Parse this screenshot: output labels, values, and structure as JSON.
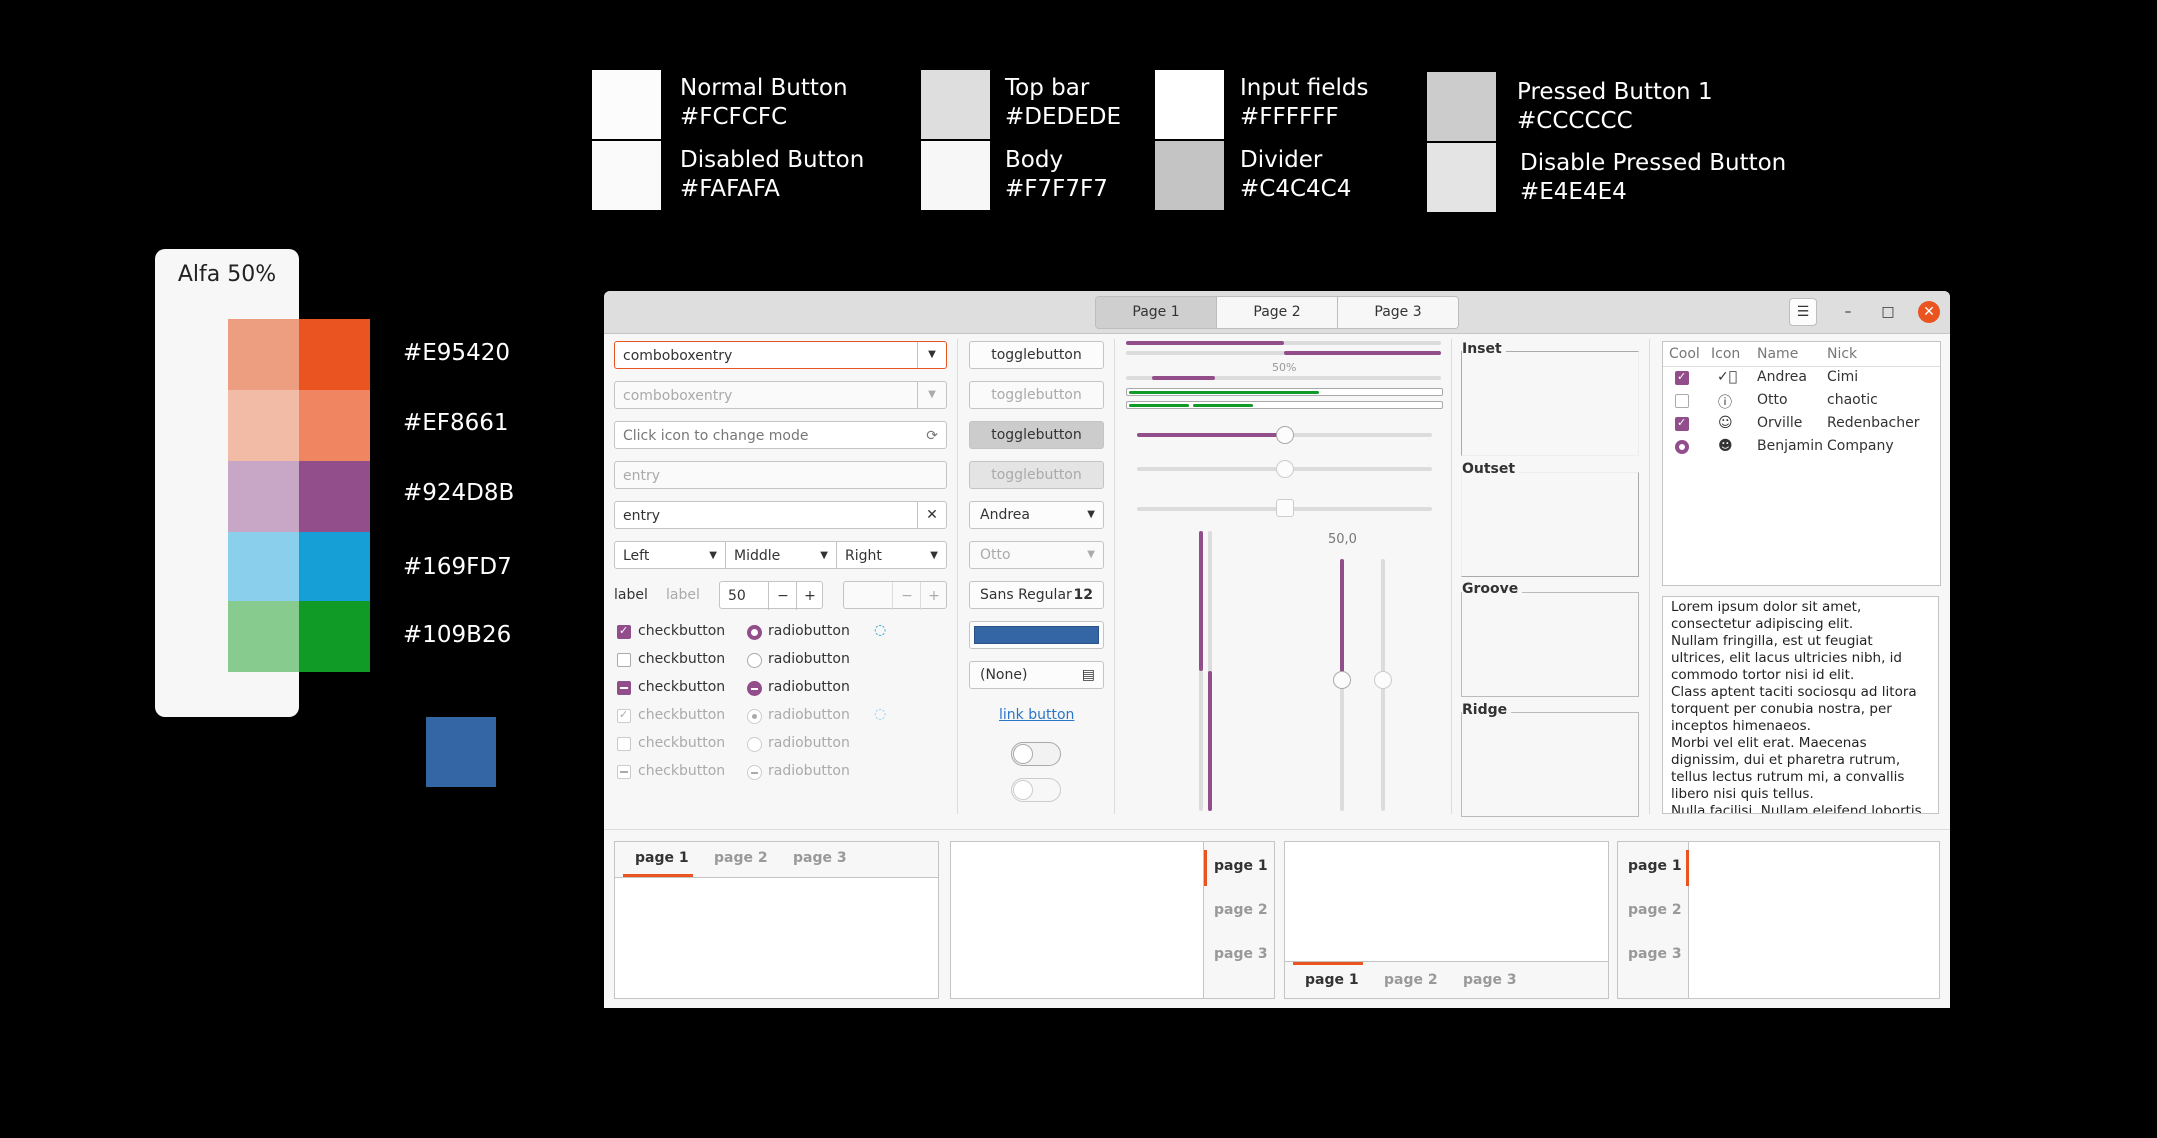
{
  "swatches": [
    {
      "name": "Normal Button",
      "hex": "#FCFCFC"
    },
    {
      "name": "Disabled Button",
      "hex": "#FAFAFA"
    },
    {
      "name": "Top bar",
      "hex": "#DEDEDE"
    },
    {
      "name": "Body",
      "hex": "#F7F7F7"
    },
    {
      "name": "Input fields",
      "hex": "#FFFFFF"
    },
    {
      "name": "Divider",
      "hex": "#C4C4C4"
    },
    {
      "name": "Pressed Button 1",
      "hex": "#CCCCCC"
    },
    {
      "name": "Disable Pressed Button",
      "hex": "#E4E4E4"
    }
  ],
  "palette": {
    "title": "Alfa 50%",
    "colors": [
      {
        "hex": "#E95420",
        "light": "#EE9E80"
      },
      {
        "hex": "#EF8661",
        "light": "#F2BBA6"
      },
      {
        "hex": "#924D8B",
        "light": "#C8A6C5"
      },
      {
        "hex": "#169FD7",
        "light": "#8ACFEB"
      },
      {
        "hex": "#109B26",
        "light": "#87CC8E"
      }
    ],
    "selected_color": "#3465A4"
  },
  "window": {
    "tabs": [
      "Page 1",
      "Page 2",
      "Page 3"
    ],
    "menu_icon": "hamburger-icon",
    "col1": {
      "combo1": "comboboxentry",
      "combo2": "comboboxentry",
      "mode_entry": "Click icon to change mode",
      "entry_placeholder": "entry",
      "entry_value": "entry",
      "align_left": "Left",
      "align_middle": "Middle",
      "align_right": "Right",
      "label1": "label",
      "label2": "label",
      "spin_value": "50",
      "check": "checkbutton",
      "radio": "radiobutton"
    },
    "col2": {
      "toggle": "togglebutton",
      "combo_andrea": "Andrea",
      "combo_otto": "Otto",
      "font_name": "Sans Regular",
      "font_size": "12",
      "file_none": "(None)",
      "link": "link button"
    },
    "col3": {
      "progress_label": "50%",
      "scale_value": "50,0"
    },
    "frames": [
      "Inset",
      "Outset",
      "Groove",
      "Ridge"
    ],
    "tree": {
      "headers": [
        "Cool",
        "Icon",
        "Name",
        "Nick"
      ],
      "rows": [
        {
          "name": "Andrea",
          "nick": "Cimi",
          "icon": "check-circle-icon"
        },
        {
          "name": "Otto",
          "nick": "chaotic",
          "icon": "exclamation-circle-icon"
        },
        {
          "name": "Orville",
          "nick": "Redenbacher",
          "icon": "face-icon"
        },
        {
          "name": "Benjamin",
          "nick": "Company",
          "icon": "person-icon"
        }
      ]
    },
    "text_lines": [
      "Lorem ipsum dolor sit amet,",
      "consectetur adipiscing elit.",
      "Nullam fringilla, est ut feugiat",
      "ultrices, elit lacus ultricies nibh, id",
      "commodo tortor nisi id elit.",
      "Class aptent taciti sociosqu ad litora",
      "torquent per conubia nostra, per",
      "inceptos himenaeos.",
      "Morbi vel elit erat. Maecenas",
      "dignissim, dui et pharetra rutrum,",
      "tellus lectus rutrum mi, a convallis",
      "libero nisi quis tellus.",
      "Nulla facilisi. Nullam eleifend lobortis"
    ],
    "notebook_tabs": [
      "page 1",
      "page 2",
      "page 3"
    ]
  }
}
